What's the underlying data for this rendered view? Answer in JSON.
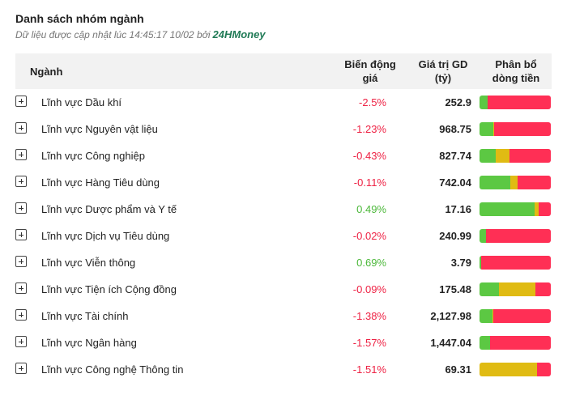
{
  "header": {
    "title": "Danh sách nhóm ngành",
    "subtitle": "Dữ liệu được cập nhật lúc 14:45:17 10/02 bởi",
    "brand": "24HMoney"
  },
  "table": {
    "columns": [
      "Ngành",
      "Biến động giá",
      "Giá trị GD (tỷ)",
      "Phân bổ dòng tiền"
    ],
    "flow_colors": [
      "#5cc843",
      "#e0bb13",
      "#ff2f55"
    ],
    "rows": [
      {
        "name": "Lĩnh vực Dầu khí",
        "change": "-2.5%",
        "value": "252.9",
        "flow": [
          11,
          0,
          89
        ]
      },
      {
        "name": "Lĩnh vực Nguyên vật liệu",
        "change": "-1.23%",
        "value": "968.75",
        "flow": [
          19,
          2,
          79
        ]
      },
      {
        "name": "Lĩnh vực Công nghiệp",
        "change": "-0.43%",
        "value": "827.74",
        "flow": [
          23,
          19,
          58
        ]
      },
      {
        "name": "Lĩnh vực Hàng Tiêu dùng",
        "change": "-0.11%",
        "value": "742.04",
        "flow": [
          43,
          10,
          47
        ]
      },
      {
        "name": "Lĩnh vực Dược phẩm và Y tế",
        "change": "0.49%",
        "value": "17.16",
        "flow": [
          77,
          6,
          17
        ]
      },
      {
        "name": "Lĩnh vực Dịch vụ Tiêu dùng",
        "change": "-0.02%",
        "value": "240.99",
        "flow": [
          9,
          0,
          91
        ]
      },
      {
        "name": "Lĩnh vực Viễn thông",
        "change": "0.69%",
        "value": "3.79",
        "flow": [
          2,
          0,
          98
        ]
      },
      {
        "name": "Lĩnh vực Tiện ích Cộng đồng",
        "change": "-0.09%",
        "value": "175.48",
        "flow": [
          27,
          51,
          22
        ]
      },
      {
        "name": "Lĩnh vực Tài chính",
        "change": "-1.38%",
        "value": "2,127.98",
        "flow": [
          18,
          1,
          81
        ]
      },
      {
        "name": "Lĩnh vực Ngân hàng",
        "change": "-1.57%",
        "value": "1,447.04",
        "flow": [
          15,
          0,
          85
        ]
      },
      {
        "name": "Lĩnh vực Công nghệ Thông tin",
        "change": "-1.51%",
        "value": "69.31",
        "flow": [
          0,
          81,
          19
        ]
      }
    ]
  }
}
